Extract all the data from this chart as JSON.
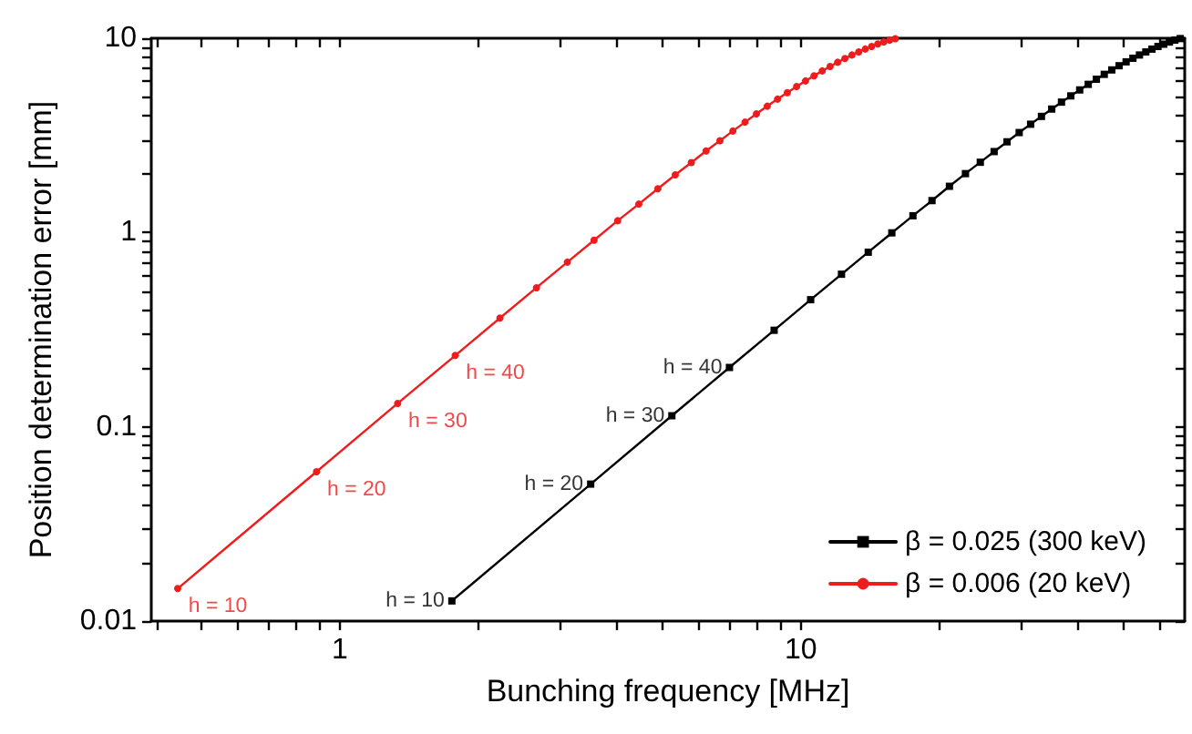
{
  "chart_data": {
    "type": "line",
    "xlabel": "Bunching frequency [MHz]",
    "ylabel": "Position determination error [mm]",
    "log": "xy",
    "xlim": [
      0.39,
      68
    ],
    "ylim": [
      0.01,
      10
    ],
    "xticks": [
      {
        "value": 0.4,
        "label": null
      },
      {
        "value": 0.5,
        "label": null
      },
      {
        "value": 0.6,
        "label": null
      },
      {
        "value": 0.7,
        "label": null
      },
      {
        "value": 0.8,
        "label": null
      },
      {
        "value": 0.9,
        "label": null
      },
      1,
      {
        "value": 2,
        "label": null
      },
      {
        "value": 3,
        "label": null
      },
      {
        "value": 4,
        "label": null
      },
      {
        "value": 5,
        "label": null
      },
      {
        "value": 6,
        "label": null
      },
      {
        "value": 7,
        "label": null
      },
      {
        "value": 8,
        "label": null
      },
      {
        "value": 9,
        "label": null
      },
      10,
      {
        "value": 20,
        "label": null
      },
      {
        "value": 30,
        "label": null
      },
      {
        "value": 40,
        "label": null
      },
      {
        "value": 50,
        "label": null
      },
      {
        "value": 60,
        "label": null
      }
    ],
    "yticks": [
      0.01,
      {
        "value": 0.02,
        "label": null
      },
      {
        "value": 0.03,
        "label": null
      },
      {
        "value": 0.04,
        "label": null
      },
      {
        "value": 0.05,
        "label": null
      },
      {
        "value": 0.06,
        "label": null
      },
      {
        "value": 0.07,
        "label": null
      },
      {
        "value": 0.08,
        "label": null
      },
      {
        "value": 0.09,
        "label": null
      },
      0.1,
      {
        "value": 0.2,
        "label": null
      },
      {
        "value": 0.3,
        "label": null
      },
      {
        "value": 0.4,
        "label": null
      },
      {
        "value": 0.5,
        "label": null
      },
      {
        "value": 0.6,
        "label": null
      },
      {
        "value": 0.7,
        "label": null
      },
      {
        "value": 0.8,
        "label": null
      },
      {
        "value": 0.9,
        "label": null
      },
      1,
      {
        "value": 2,
        "label": null
      },
      {
        "value": 3,
        "label": null
      },
      {
        "value": 4,
        "label": null
      },
      {
        "value": 5,
        "label": null
      },
      {
        "value": 6,
        "label": null
      },
      {
        "value": 7,
        "label": null
      },
      {
        "value": 8,
        "label": null
      },
      {
        "value": 9,
        "label": null
      },
      10
    ],
    "grid": false,
    "legend": "bottom right",
    "line_style": "solid",
    "series": [
      {
        "name": "β = 0.025 (300 keV)",
        "color": "#000000",
        "marker": "square",
        "x": [
          1.75,
          3.5,
          5.25,
          7,
          8.75,
          10.5,
          12.25,
          14,
          15.75,
          17.5,
          19.25,
          21,
          22.75,
          24.5,
          26.25,
          28,
          29.75,
          31.5,
          33.25,
          35,
          36.75,
          38.5,
          40.25,
          42,
          43.75,
          45.5,
          47.25,
          49,
          50.75,
          52.5,
          54.25,
          56,
          57.75,
          59.5,
          61.25,
          63,
          64.75,
          66.5
        ],
        "values": [
          0.0127,
          0.0507,
          0.114,
          0.202,
          0.314,
          0.451,
          0.61,
          0.792,
          0.996,
          1.22,
          1.46,
          1.73,
          2.01,
          2.3,
          2.61,
          2.93,
          3.27,
          3.61,
          3.96,
          4.32,
          4.69,
          5.05,
          5.42,
          5.79,
          6.15,
          6.52,
          6.87,
          7.22,
          7.56,
          7.89,
          8.2,
          8.5,
          8.79,
          9.07,
          9.32,
          9.56,
          9.78,
          9.96
        ]
      },
      {
        "name": "β = 0.006 (20 keV)",
        "color": "#ee1c1c",
        "marker": "circle",
        "x": [
          0.445,
          0.89,
          1.335,
          1.78,
          2.225,
          2.67,
          3.115,
          3.56,
          4.005,
          4.45,
          4.895,
          5.34,
          5.785,
          6.23,
          6.675,
          7.12,
          7.565,
          8.01,
          8.455,
          8.9,
          9.345,
          9.79,
          10.235,
          10.68,
          11.125,
          11.57,
          12.015,
          12.46,
          12.905,
          13.35,
          13.795,
          14.24,
          14.685,
          15.13,
          15.575,
          16.02
        ],
        "values": [
          0.0147,
          0.0587,
          0.132,
          0.233,
          0.363,
          0.52,
          0.704,
          0.913,
          1.15,
          1.4,
          1.68,
          1.98,
          2.29,
          2.63,
          2.97,
          3.33,
          3.7,
          4.08,
          4.47,
          4.86,
          5.25,
          5.64,
          6.03,
          6.41,
          6.79,
          7.16,
          7.52,
          7.87,
          8.2,
          8.51,
          8.8,
          9.08,
          9.34,
          9.57,
          9.77,
          9.95
        ]
      }
    ],
    "annotations": [
      {
        "text": "h = 10",
        "x": 1.75,
        "y": 0.0127
      },
      {
        "text": "h = 20",
        "x": 3.5,
        "y": 0.0507
      },
      {
        "text": "h = 30",
        "x": 5.25,
        "y": 0.114
      },
      {
        "text": "h = 40",
        "x": 7,
        "y": 0.202
      },
      {
        "text": "h = 10",
        "x": 0.445,
        "y": 0.0147
      },
      {
        "text": "h = 20",
        "x": 0.89,
        "y": 0.0587
      },
      {
        "text": "h = 30",
        "x": 1.335,
        "y": 0.132
      },
      {
        "text": "h = 40",
        "x": 1.78,
        "y": 0.233
      }
    ]
  }
}
